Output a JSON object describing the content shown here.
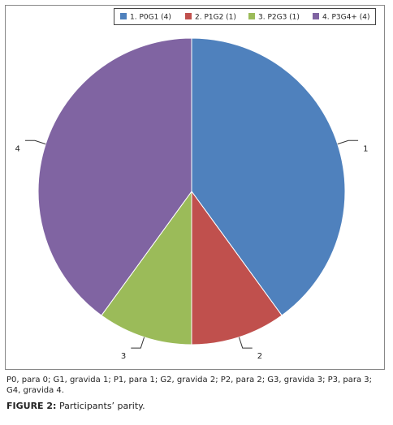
{
  "chart_data": {
    "type": "pie",
    "categories": [
      "1. P0G1 (4)",
      "2. P1G2 (1)",
      "3. P2G3 (1)",
      "4. P3G4+ (4)"
    ],
    "values": [
      4,
      1,
      1,
      4
    ],
    "slice_labels": [
      "1",
      "2",
      "3",
      "4"
    ],
    "colors": [
      "#4f81bd",
      "#c0504d",
      "#9bbb59",
      "#8064a2"
    ],
    "legend": "top"
  },
  "caption": {
    "note": "P0, para 0; G1, gravida 1; P1, para 1; G2, gravida 2; P2, para 2; G3, gravida 3; P3, para 3; G4, gravida 4.",
    "figure_label": "FIGURE 2:",
    "figure_title": "Participants’ parity."
  }
}
